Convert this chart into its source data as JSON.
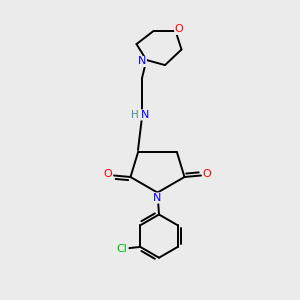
{
  "bg_color": "#ebebeb",
  "atom_colors": {
    "C": "#000000",
    "N": "#0000ff",
    "O": "#ff0000",
    "Cl": "#00bb00",
    "H": "#4a9090"
  },
  "figsize": [
    3.0,
    3.0
  ],
  "dpi": 100,
  "lw": 1.4,
  "fs": 7.5
}
